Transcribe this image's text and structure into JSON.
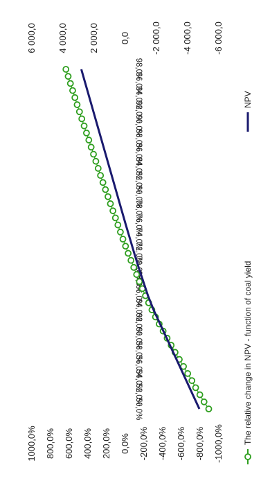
{
  "chart_data": {
    "type": "line",
    "orientation": "rotated-90-clockwise",
    "title": "",
    "categories": [
      "50,0%",
      "52,0%",
      "54,0%",
      "56,0%",
      "58,0%",
      "60,0%",
      "62,0%",
      "64,0%",
      "66,0%",
      "68,0%",
      "70,0%",
      "72,0%",
      "74,0%",
      "76,0%",
      "78,0%",
      "80,0%",
      "82,0%",
      "84,0%",
      "86,0%",
      "88,0%",
      "90,0%",
      "92,0%",
      "94,0%",
      "96,0%",
      "98,0%"
    ],
    "left_axis": {
      "ticks": [
        "1000,0%",
        "800,0%",
        "600,0%",
        "400,0%",
        "200,0%",
        "0,0%",
        "-200,0%",
        "-400,0%",
        "-600,0%",
        "-800,0%",
        "-1000,0%"
      ],
      "range": [
        -1000,
        1000
      ]
    },
    "right_axis": {
      "ticks": [
        "6 000,0",
        "4 000,0",
        "2 000,0",
        "0,0",
        "-2 000,0",
        "-4 000,0",
        "-6 000,0"
      ],
      "range": [
        -6000,
        6000
      ]
    },
    "series": [
      {
        "name": "The relative change in NPV - function of coal yield",
        "axis": "left",
        "color": "#2e9e1e",
        "marker": "circle-open",
        "x": [
          50,
          51,
          52,
          53,
          54,
          55,
          56,
          57,
          58,
          59,
          60,
          61,
          62,
          63,
          64,
          65,
          66,
          67,
          68,
          69,
          70,
          71,
          72,
          73,
          74,
          75,
          76,
          77,
          78,
          79,
          80,
          81,
          82,
          83,
          84,
          85,
          86,
          87,
          88,
          89,
          90,
          91,
          92,
          93,
          94,
          95,
          96,
          97,
          98
        ],
        "values": [
          -900,
          -850,
          -805,
          -760,
          -720,
          -675,
          -630,
          -585,
          -540,
          -498,
          -455,
          -412,
          -370,
          -330,
          -292,
          -257,
          -223,
          -190,
          -158,
          -128,
          -98,
          -68,
          -38,
          -10,
          18,
          45,
          72,
          98,
          125,
          152,
          178,
          205,
          232,
          258,
          283,
          308,
          333,
          358,
          383,
          408,
          433,
          458,
          483,
          508,
          532,
          556,
          580,
          604,
          628
        ]
      },
      {
        "name": "NPV",
        "axis": "right",
        "color": "#1a1a6e",
        "marker": "none",
        "x": [
          50,
          52,
          54,
          56,
          58,
          60,
          62,
          64,
          66,
          68,
          70,
          72,
          74,
          76,
          78,
          80,
          82,
          84,
          86,
          88,
          90,
          92,
          94,
          96,
          98
        ],
        "values": [
          -4800,
          -4380,
          -3960,
          -3540,
          -3120,
          -2700,
          -2280,
          -1860,
          -1500,
          -1200,
          -900,
          -620,
          -350,
          -80,
          180,
          440,
          700,
          960,
          1220,
          1480,
          1740,
          2000,
          2260,
          2520,
          2780
        ]
      }
    ],
    "grid": false,
    "legend_position": "bottom"
  }
}
